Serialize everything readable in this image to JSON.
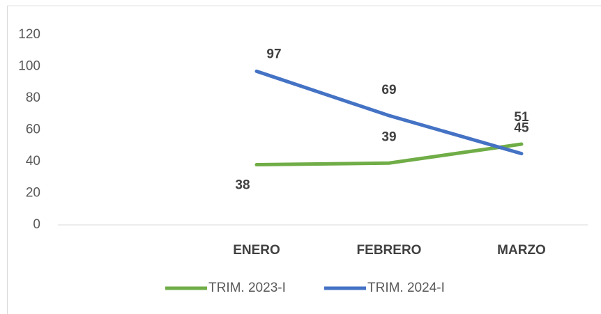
{
  "chart_data": {
    "type": "line",
    "categories": [
      null,
      "ENERO",
      "FEBRERO",
      "MARZO"
    ],
    "series": [
      {
        "name": "TRIM. 2023-I",
        "color": "#70ad47",
        "values": [
          null,
          38,
          39,
          51
        ]
      },
      {
        "name": "TRIM. 2024-I",
        "color": "#4472c4",
        "values": [
          null,
          97,
          69,
          45
        ]
      }
    ],
    "ylim": [
      0,
      120
    ],
    "yticks": [
      0,
      20,
      40,
      60,
      80,
      100,
      120
    ],
    "grid": false,
    "legend": "bottom"
  }
}
